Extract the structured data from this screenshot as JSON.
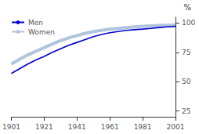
{
  "chart_data": {
    "type": "line",
    "x": [
      1901,
      1906,
      1911,
      1916,
      1921,
      1926,
      1931,
      1936,
      1941,
      1946,
      1951,
      1956,
      1961,
      1966,
      1971,
      1976,
      1981,
      1986,
      1991,
      1996,
      2001
    ],
    "series": [
      {
        "name": "Women",
        "color": "#b0c4de",
        "values": [
          65.0,
          69.0,
          72.8,
          76.0,
          79.0,
          82.2,
          85.0,
          87.4,
          89.4,
          91.3,
          92.8,
          93.8,
          94.8,
          95.5,
          96.2,
          96.8,
          97.3,
          97.7,
          98.0,
          98.2,
          98.4
        ]
      },
      {
        "name": "Men",
        "color": "#0000cc",
        "values": [
          57.0,
          61.0,
          65.0,
          68.5,
          71.5,
          75.0,
          78.0,
          81.0,
          83.5,
          86.0,
          88.4,
          90.3,
          91.8,
          92.8,
          93.8,
          94.4,
          94.9,
          95.5,
          96.2,
          96.8,
          97.2
        ]
      }
    ],
    "xlim": [
      1901,
      2001
    ],
    "xticks": [
      1901,
      1921,
      1941,
      1961,
      1981,
      2001
    ],
    "ylim": [
      20,
      105
    ],
    "yticks": [
      25,
      50,
      75,
      100
    ],
    "annotation": "%",
    "grid": false,
    "legend": "upper left"
  }
}
